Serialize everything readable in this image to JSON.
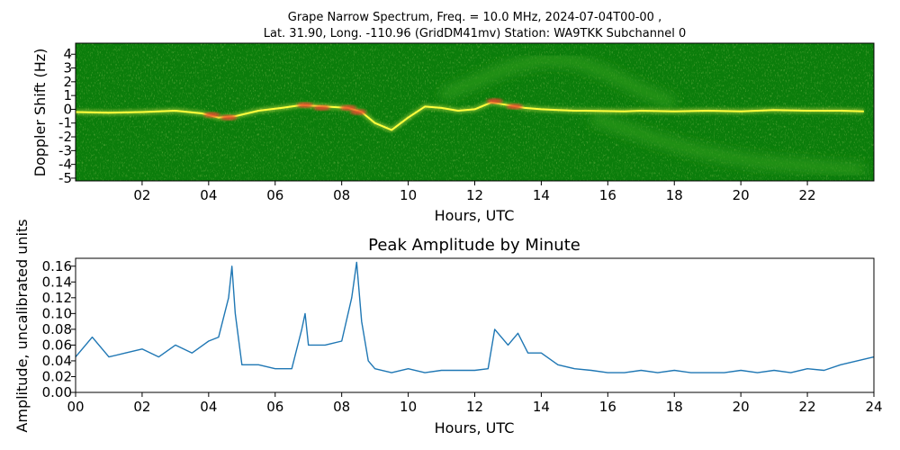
{
  "chart_data": [
    {
      "type": "heatmap",
      "title_lines": [
        "Grape Narrow Spectrum, Freq. = 10.0 MHz, 2024-07-04T00-00 ,",
        "Lat.  31.90, Long. -110.96 (GridDM41mv) Station: WA9TKK Subchannel 0"
      ],
      "xlabel": "Hours, UTC",
      "ylabel": "Doppler Shift (Hz)",
      "xlim": [
        0,
        24
      ],
      "ylim": [
        -5.2,
        4.8
      ],
      "xticks": [
        2,
        4,
        6,
        8,
        10,
        12,
        14,
        16,
        18,
        20,
        22
      ],
      "xtick_labels": [
        "02",
        "04",
        "06",
        "08",
        "10",
        "12",
        "14",
        "16",
        "18",
        "20",
        "22"
      ],
      "yticks": [
        4,
        3,
        2,
        1,
        0,
        -1,
        -2,
        -3,
        -4,
        -5
      ],
      "ytick_labels": [
        "4",
        "3",
        "2",
        "1",
        "0",
        "-1",
        "-2",
        "-3",
        "-4",
        "-5"
      ],
      "colors": {
        "background": "#0b7d0b",
        "low": "#2f9a1a",
        "mid": "#d8e04a",
        "high": "#ffff3c",
        "peak": "#e8402a"
      },
      "main_trace": [
        [
          0.0,
          -0.2
        ],
        [
          1.0,
          -0.25
        ],
        [
          2.0,
          -0.2
        ],
        [
          3.0,
          -0.1
        ],
        [
          3.8,
          -0.3
        ],
        [
          4.3,
          -0.6
        ],
        [
          4.8,
          -0.5
        ],
        [
          5.5,
          -0.1
        ],
        [
          6.2,
          0.1
        ],
        [
          6.8,
          0.3
        ],
        [
          7.5,
          0.2
        ],
        [
          8.2,
          0.1
        ],
        [
          8.6,
          -0.2
        ],
        [
          9.0,
          -1.0
        ],
        [
          9.5,
          -1.5
        ],
        [
          10.0,
          -0.6
        ],
        [
          10.5,
          0.2
        ],
        [
          11.0,
          0.1
        ],
        [
          11.5,
          -0.1
        ],
        [
          12.0,
          0.0
        ],
        [
          12.5,
          0.5
        ],
        [
          13.0,
          0.3
        ],
        [
          13.5,
          0.1
        ],
        [
          14.0,
          0.0
        ],
        [
          14.5,
          -0.05
        ],
        [
          15.0,
          -0.1
        ],
        [
          15.3,
          -0.1
        ],
        [
          16.5,
          -0.15
        ],
        [
          17.0,
          -0.1
        ],
        [
          18.0,
          -0.15
        ],
        [
          19.0,
          -0.1
        ],
        [
          20.0,
          -0.15
        ],
        [
          21.0,
          -0.05
        ],
        [
          22.0,
          -0.1
        ],
        [
          23.0,
          -0.1
        ],
        [
          23.7,
          -0.15
        ]
      ],
      "upper_arc": [
        [
          11.0,
          1.0
        ],
        [
          12.0,
          2.0
        ],
        [
          13.0,
          3.0
        ],
        [
          14.0,
          3.6
        ],
        [
          15.0,
          3.5
        ],
        [
          16.0,
          2.6
        ],
        [
          17.0,
          1.4
        ],
        [
          18.0,
          0.4
        ]
      ],
      "lower_arc": [
        [
          15.5,
          -0.6
        ],
        [
          16.5,
          -1.4
        ],
        [
          17.5,
          -2.2
        ],
        [
          18.5,
          -2.9
        ],
        [
          19.5,
          -3.4
        ],
        [
          20.5,
          -3.8
        ],
        [
          21.5,
          -4.0
        ],
        [
          22.5,
          -4.2
        ],
        [
          23.7,
          -4.4
        ]
      ],
      "hot_spots": [
        [
          4.6,
          -0.6
        ],
        [
          4.1,
          -0.4
        ],
        [
          6.9,
          0.3
        ],
        [
          7.4,
          0.1
        ],
        [
          8.2,
          0.1
        ],
        [
          8.5,
          -0.2
        ],
        [
          12.6,
          0.6
        ],
        [
          13.2,
          0.2
        ]
      ]
    },
    {
      "type": "line",
      "title": "Peak Amplitude by Minute",
      "xlabel": "Hours, UTC",
      "ylabel": "Amplitude, uncalibrated units",
      "xlim": [
        0,
        24
      ],
      "ylim": [
        0.0,
        0.17
      ],
      "xticks": [
        0,
        2,
        4,
        6,
        8,
        10,
        12,
        14,
        16,
        18,
        20,
        22,
        24
      ],
      "xtick_labels": [
        "00",
        "02",
        "04",
        "06",
        "08",
        "10",
        "12",
        "14",
        "16",
        "18",
        "20",
        "22",
        "24"
      ],
      "yticks": [
        0.0,
        0.02,
        0.04,
        0.06,
        0.08,
        0.1,
        0.12,
        0.14,
        0.16
      ],
      "ytick_labels": [
        "0.00",
        "0.02",
        "0.04",
        "0.06",
        "0.08",
        "0.10",
        "0.12",
        "0.14",
        "0.16"
      ],
      "line_color": "#1f77b4",
      "x": [
        0,
        0.5,
        1,
        1.5,
        2,
        2.5,
        3,
        3.5,
        4,
        4.3,
        4.6,
        4.7,
        4.8,
        5,
        5.5,
        6,
        6.5,
        6.8,
        6.9,
        7,
        7.5,
        8,
        8.3,
        8.45,
        8.6,
        8.8,
        9,
        9.5,
        10,
        10.5,
        11,
        11.5,
        12,
        12.4,
        12.6,
        13,
        13.3,
        13.6,
        14,
        14.5,
        15,
        15.5,
        16,
        16.5,
        17,
        17.5,
        18,
        18.5,
        19,
        19.5,
        20,
        20.5,
        21,
        21.5,
        22,
        22.5,
        23,
        23.5,
        24
      ],
      "y": [
        0.045,
        0.07,
        0.045,
        0.05,
        0.055,
        0.045,
        0.06,
        0.05,
        0.065,
        0.07,
        0.12,
        0.16,
        0.1,
        0.035,
        0.035,
        0.03,
        0.03,
        0.08,
        0.1,
        0.06,
        0.06,
        0.065,
        0.12,
        0.165,
        0.09,
        0.04,
        0.03,
        0.025,
        0.03,
        0.025,
        0.028,
        0.028,
        0.028,
        0.03,
        0.08,
        0.06,
        0.075,
        0.05,
        0.05,
        0.035,
        0.03,
        0.028,
        0.025,
        0.025,
        0.028,
        0.025,
        0.028,
        0.025,
        0.025,
        0.025,
        0.028,
        0.025,
        0.028,
        0.025,
        0.03,
        0.028,
        0.035,
        0.04,
        0.045
      ]
    }
  ]
}
